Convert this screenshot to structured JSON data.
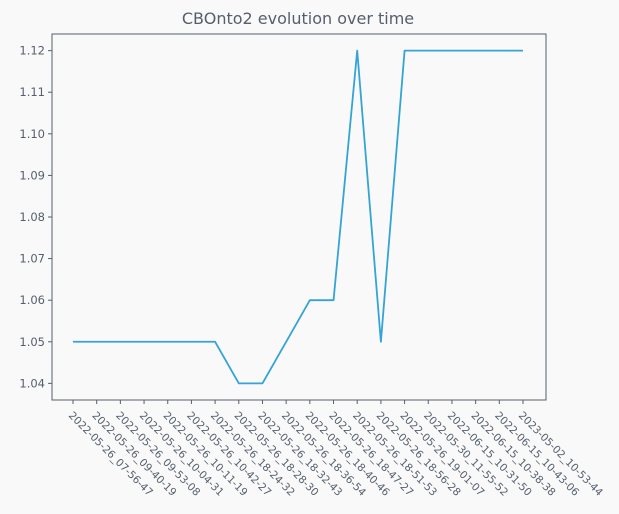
{
  "chart_data": {
    "type": "line",
    "title": "CBOnto2 evolution over time",
    "xlabel": "",
    "ylabel": "",
    "categories": [
      "2022-05-26_07-56-47",
      "2022-05-26_09-40-19",
      "2022-05-26_09-53-08",
      "2022-05-26_10-04-31",
      "2022-05-26_10-11-19",
      "2022-05-26_10-42-27",
      "2022-05-26_18-24-32",
      "2022-05-26_18-28-30",
      "2022-05-26_18-32-43",
      "2022-05-26_18-36-54",
      "2022-05-26_18-40-46",
      "2022-05-26_18-47-27",
      "2022-05-26_18-51-53",
      "2022-05-26_18-56-28",
      "2022-05-26_19-01-07",
      "2022-05-30_11-55-52",
      "2022-06-15_10-31-50",
      "2022-06-15_10-38-38",
      "2022-06-15_10-43-06",
      "2023-05-02_10-53-44"
    ],
    "series": [
      {
        "name": "CBOnto2",
        "values": [
          1.05,
          1.05,
          1.05,
          1.05,
          1.05,
          1.05,
          1.05,
          1.04,
          1.04,
          1.05,
          1.06,
          1.06,
          1.12,
          1.05,
          1.12,
          1.12,
          1.12,
          1.12,
          1.12,
          1.12
        ]
      }
    ],
    "ylim": [
      1.036,
      1.124
    ],
    "yticks": [
      "1.04",
      "1.05",
      "1.06",
      "1.07",
      "1.08",
      "1.09",
      "1.10",
      "1.11",
      "1.12"
    ],
    "ytick_values": [
      1.04,
      1.05,
      1.06,
      1.07,
      1.08,
      1.09,
      1.1,
      1.11,
      1.12
    ],
    "grid": false,
    "line_color": "#34a4d4",
    "axis_color": "#555f6d",
    "plot_background": "#f9f9f9"
  }
}
